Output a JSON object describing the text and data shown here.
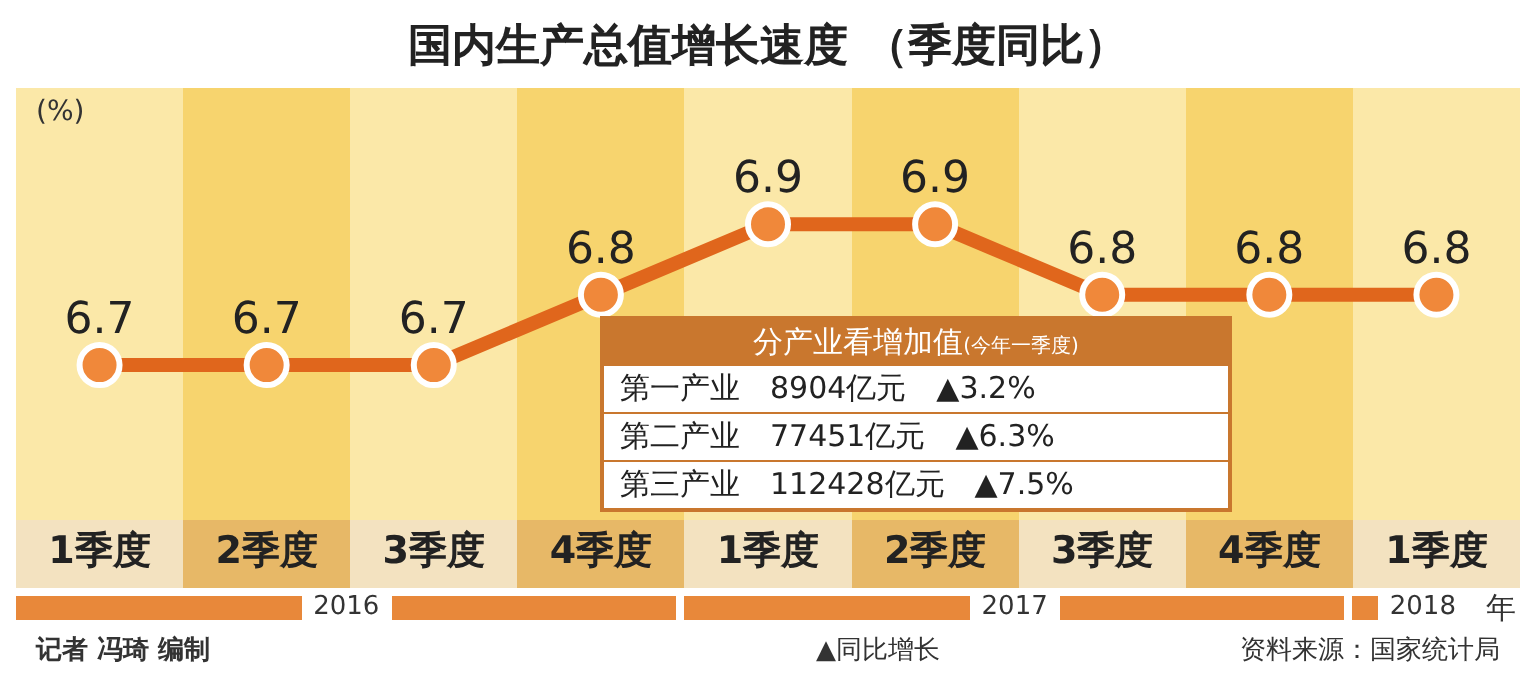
{
  "chart_data": {
    "type": "line",
    "title": "国内生产总值增长速度 （季度同比）",
    "ylabel": "(%)",
    "categories": [
      "1季度",
      "2季度",
      "3季度",
      "4季度",
      "1季度",
      "2季度",
      "3季度",
      "4季度",
      "1季度"
    ],
    "series": [
      {
        "color": "#e0661c",
        "values": [
          6.7,
          6.7,
          6.7,
          6.8,
          6.9,
          6.9,
          6.8,
          6.8,
          6.8
        ]
      }
    ],
    "data_labels": true,
    "marker": "circle",
    "annotations": [
      "分产业看增加值",
      "(今年一季度)",
      "第一产业　8904亿元　▲3.2%",
      "第二产业　77451亿元　▲6.3%",
      "第三产业　112428亿元　▲7.5%",
      "2016",
      "2017",
      "2018",
      "年",
      "记者 冯琦 编制",
      "▲同比增长",
      "资料来源：国家统计局"
    ]
  }
}
